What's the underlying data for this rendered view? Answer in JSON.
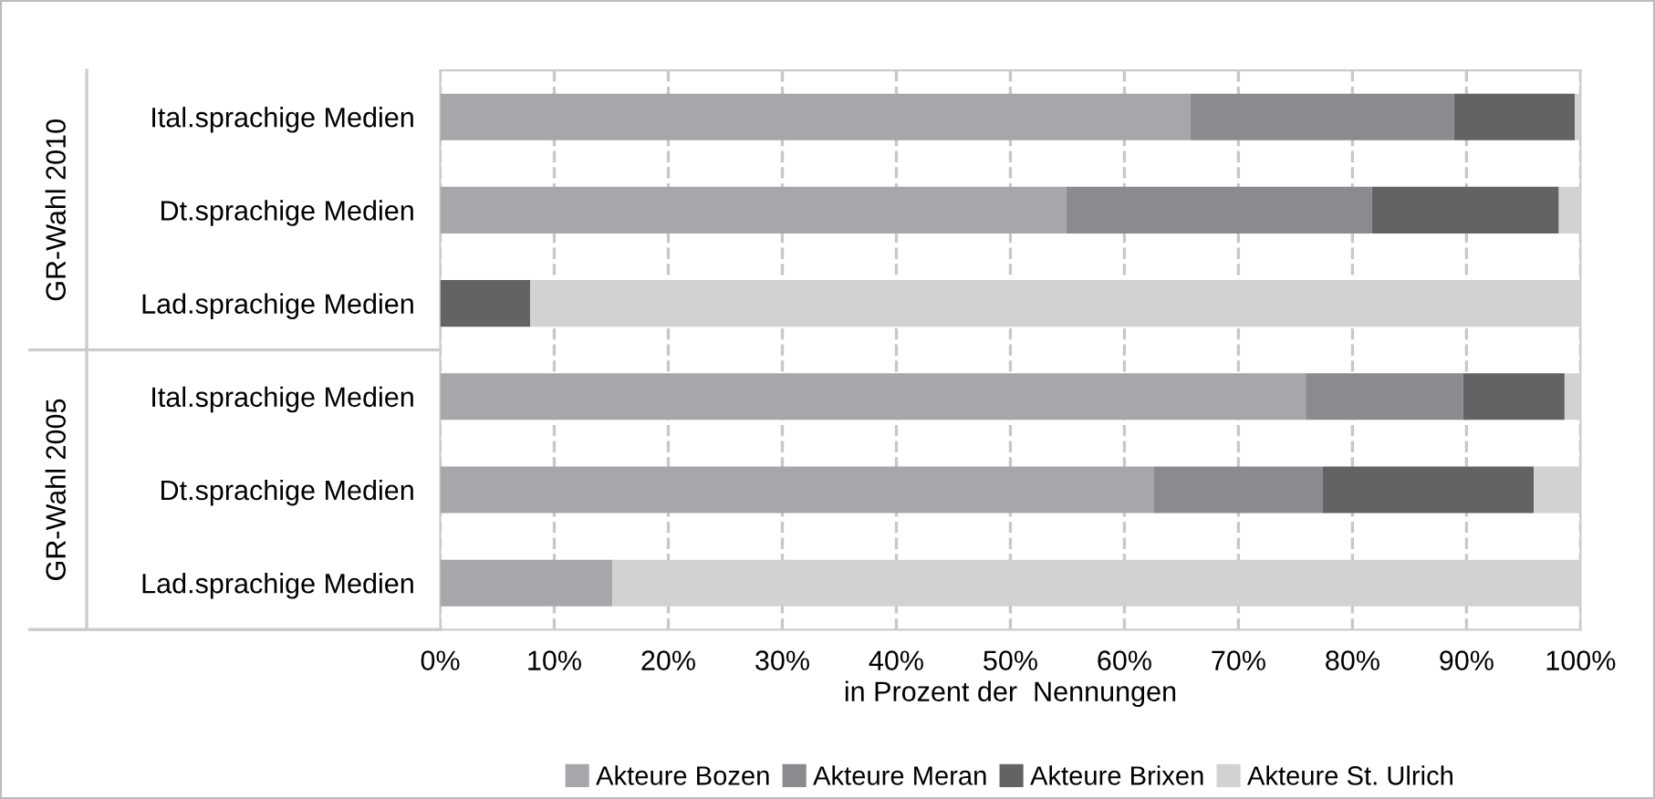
{
  "chart_data": {
    "type": "bar",
    "orientation": "horizontal",
    "stacked": true,
    "categories": [
      "Ital.sprachige Medien",
      "Dt.sprachige Medien",
      "Lad.sprachige Medien",
      "Ital.sprachige Medien",
      "Dt.sprachige Medien",
      "Lad.sprachige Medien"
    ],
    "series": [
      {
        "name": "Akteure Bozen",
        "color": "#a6a7ab",
        "values": [
          65.8,
          54.9,
          0,
          75.9,
          62.6,
          15.1
        ]
      },
      {
        "name": "Akteure Meran",
        "color": "#8a8b8f",
        "values": [
          23.1,
          26.8,
          0,
          13.8,
          14.8,
          0
        ]
      },
      {
        "name": "Akteure Brixen",
        "color": "#636365",
        "values": [
          10.6,
          16.4,
          7.9,
          8.9,
          18.5,
          0
        ]
      },
      {
        "name": "Akteure St. Ulrich",
        "color": "#d1d2d4",
        "values": [
          0.5,
          1.9,
          92.1,
          1.4,
          4.1,
          84.9
        ]
      }
    ],
    "xlabel": "in Prozent der  Nennungen",
    "xlim": [
      0,
      100
    ],
    "xticks": [
      {
        "value": 0,
        "label": "0%"
      },
      {
        "value": 10,
        "label": "10%"
      },
      {
        "value": 20,
        "label": "20%"
      },
      {
        "value": 30,
        "label": "30%"
      },
      {
        "value": 40,
        "label": "40%"
      },
      {
        "value": 50,
        "label": "50%"
      },
      {
        "value": 60,
        "label": "60%"
      },
      {
        "value": 70,
        "label": "70%"
      },
      {
        "value": 80,
        "label": "80%"
      },
      {
        "value": 90,
        "label": "90%"
      },
      {
        "value": 100,
        "label": "100%"
      }
    ],
    "annotations": [
      "GR-Wahl 2010",
      "GR-Wahl 2005"
    ],
    "grid": "x",
    "line_style": "dashed",
    "legend": "bottom"
  }
}
